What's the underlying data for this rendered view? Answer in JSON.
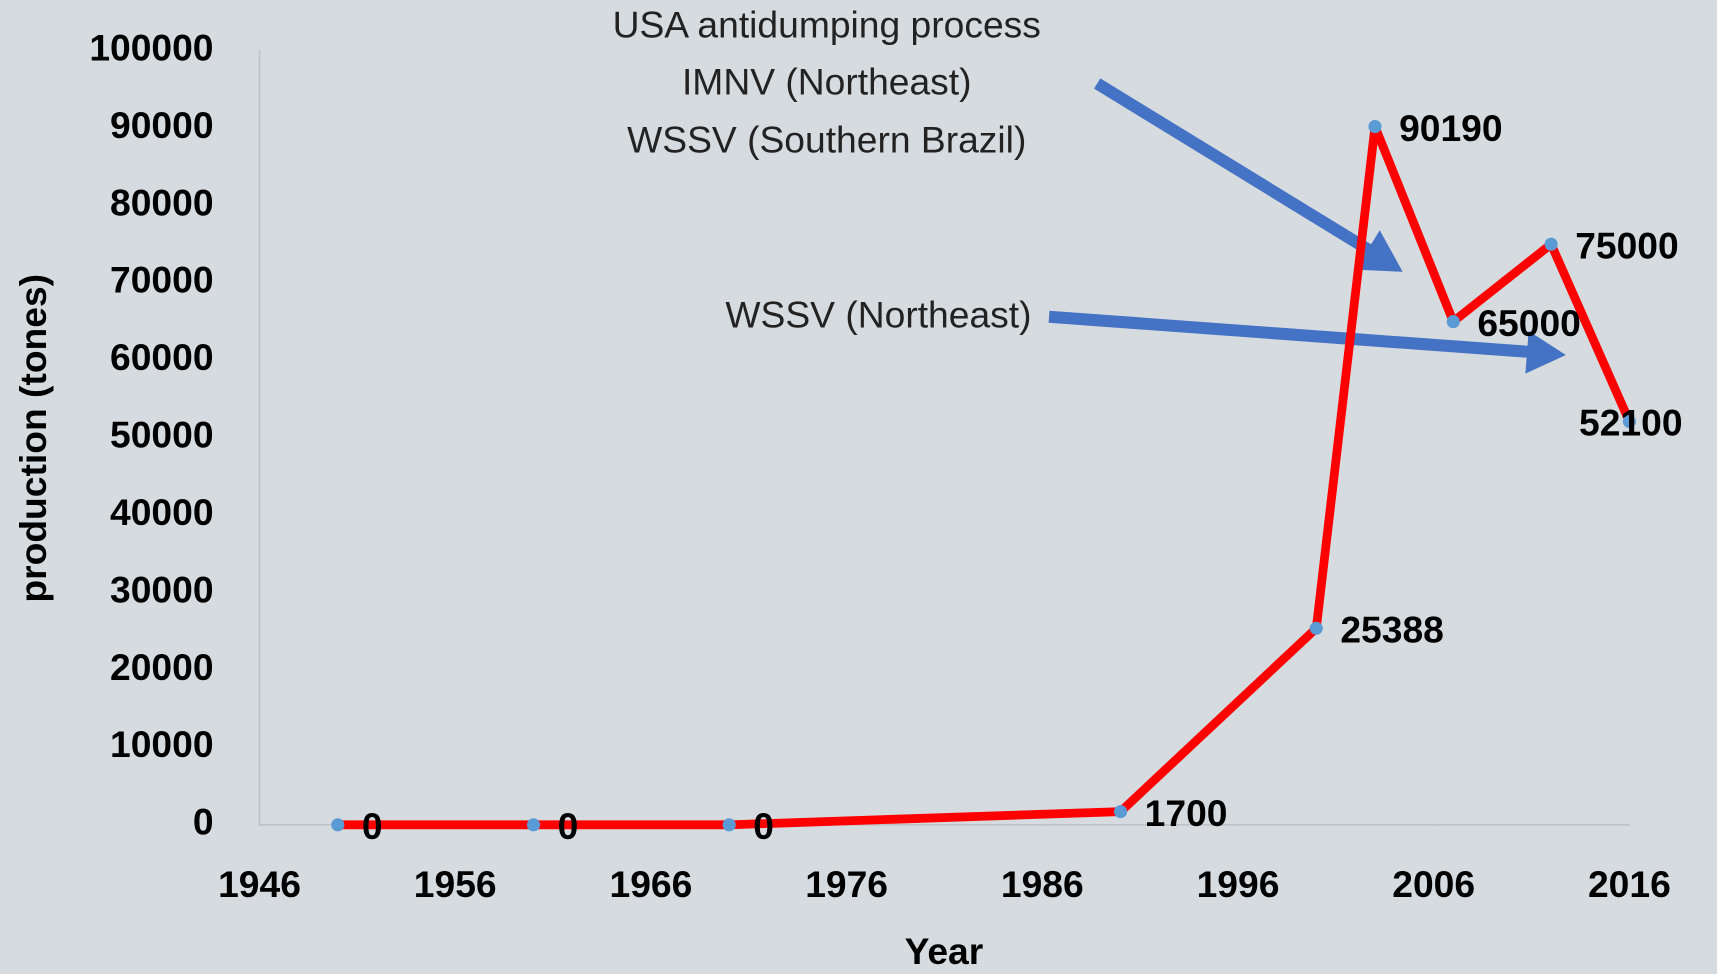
{
  "chart_data": {
    "type": "line",
    "x_label": "Year",
    "y_label": "production (tones)",
    "x": [
      1950,
      1960,
      1970,
      1990,
      2000,
      2003,
      2007,
      2012,
      2016
    ],
    "series": [
      {
        "name": "production",
        "color": "#ff0000",
        "marker_color": "#5b9bd5",
        "values": [
          0,
          0,
          0,
          1700,
          25388,
          90190,
          65000,
          75000,
          52100
        ]
      }
    ],
    "xlim": [
      1946,
      2016
    ],
    "xticks": [
      1946,
      1956,
      1966,
      1976,
      1986,
      1996,
      2006,
      2016
    ],
    "ylim": [
      0,
      100000
    ],
    "yticks": [
      0,
      10000,
      20000,
      30000,
      40000,
      50000,
      60000,
      70000,
      80000,
      90000,
      100000
    ],
    "grid": false,
    "annotations": [
      "USA antidumping process",
      "IMNV (Northeast)",
      "WSSV (Southern Brazil)",
      "WSSV (Northeast)"
    ]
  }
}
